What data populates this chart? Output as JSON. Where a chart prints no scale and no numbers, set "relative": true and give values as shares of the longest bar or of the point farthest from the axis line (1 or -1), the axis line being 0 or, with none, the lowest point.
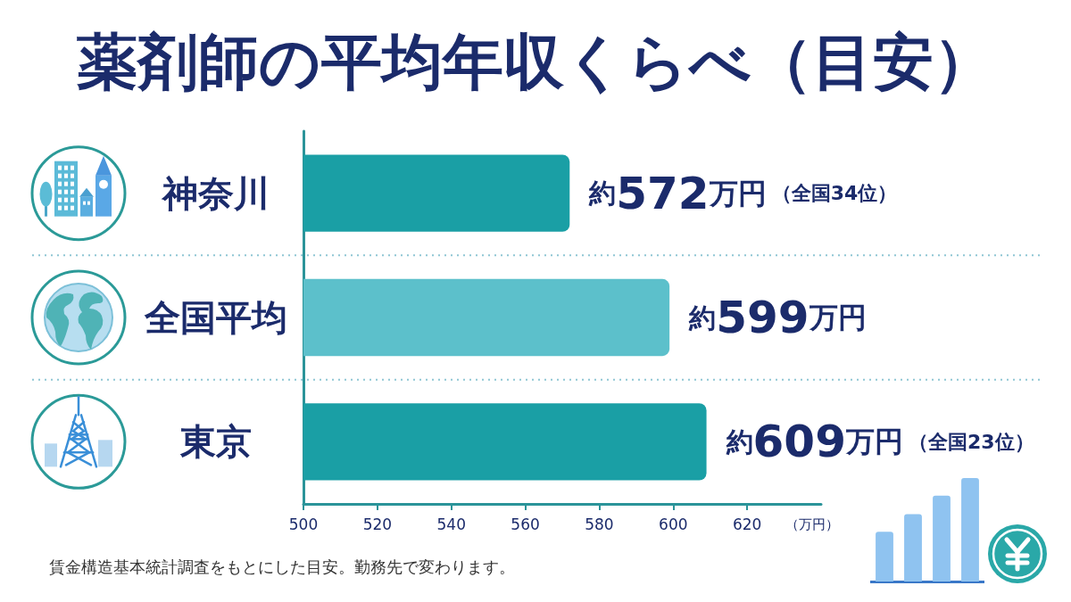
{
  "chart_data": [
    {
      "type": "bar",
      "orientation": "horizontal",
      "title": "薬剤師の平均年収くらべ（目安）",
      "xlabel": "（万円）",
      "categories": [
        "神奈川",
        "全国平均",
        "東京"
      ],
      "values": [
        572,
        599,
        609
      ],
      "colors": [
        "#1a9fa5",
        "#5cc0cb",
        "#1a9fa5"
      ],
      "value_labels": [
        "約572万円（全国34位）",
        "約599万円",
        "約609万円（全国23位）"
      ],
      "xlim": [
        500,
        640
      ],
      "xticks": [
        500,
        520,
        540,
        560,
        580,
        600,
        620
      ],
      "grid": "y",
      "annotations": [
        "賃金構造基本統計調査をもとにした目安。勤務先で変わります。"
      ]
    },
    {
      "type": "bar",
      "relative": true,
      "categories": [
        null,
        null,
        null,
        null
      ],
      "values": [
        0.48,
        0.65,
        0.83,
        1
      ],
      "color": "#8fc3f0"
    }
  ]
}
